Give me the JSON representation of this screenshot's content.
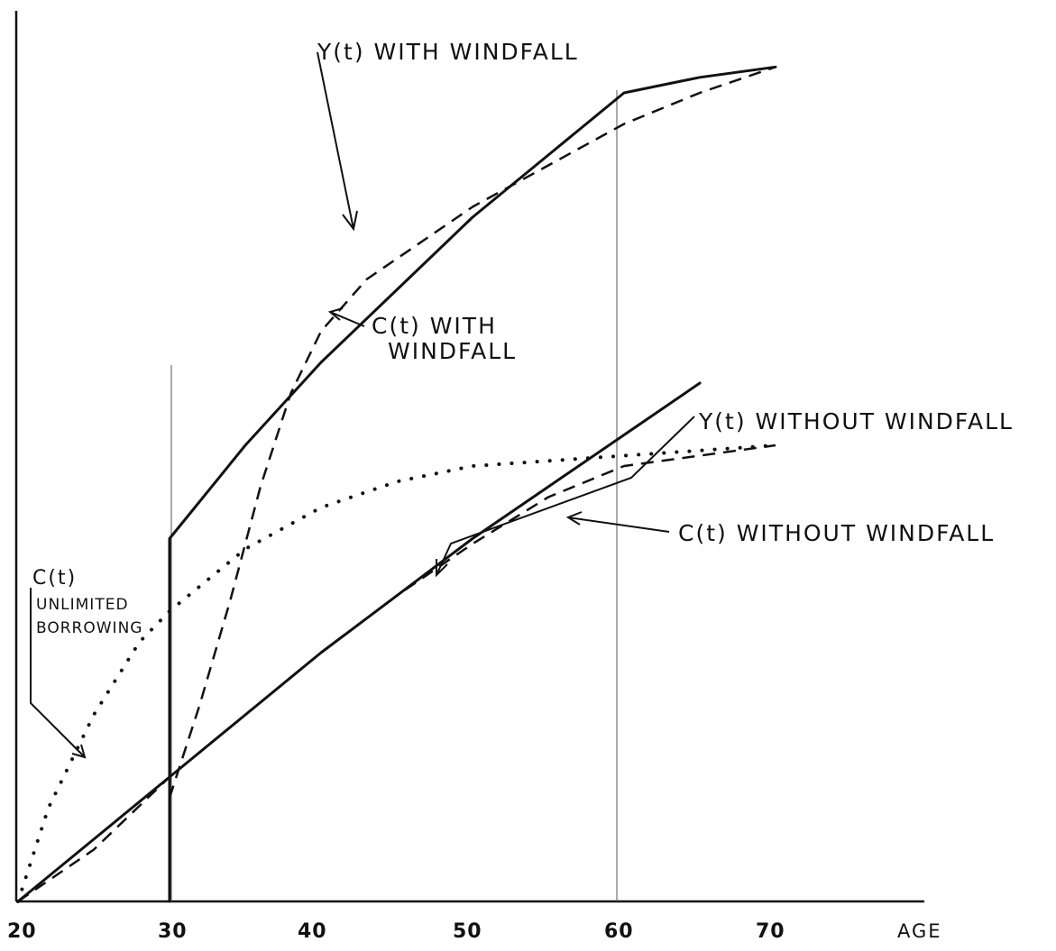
{
  "chart_data": {
    "type": "line",
    "title": "",
    "xlabel": "AGE",
    "ylabel": "",
    "x_ticks": [
      "20",
      "30",
      "40",
      "50",
      "60",
      "70"
    ],
    "xlim": [
      20,
      70
    ],
    "grid": false,
    "legend": "none",
    "series": [
      {
        "name": "Y(t) WITH WINDFALL",
        "style": "solid",
        "x": [
          30,
          30,
          35,
          40,
          45,
          50,
          55,
          60,
          65,
          70
        ],
        "y": [
          0,
          35,
          44,
          52,
          59,
          66,
          72,
          78,
          79.5,
          80.5
        ]
      },
      {
        "name": "C(t) WITH WINDFALL",
        "style": "dashed",
        "x": [
          30,
          32,
          34,
          36,
          38,
          40,
          43,
          47,
          50,
          55,
          60,
          65,
          70
        ],
        "y": [
          10,
          19,
          29,
          40,
          49,
          55,
          60,
          64,
          67,
          71,
          75,
          78,
          80.5
        ]
      },
      {
        "name": "Y(t) WITHOUT WINDFALL",
        "style": "solid",
        "x": [
          20,
          25,
          30,
          35,
          40,
          45,
          50,
          55,
          60,
          65
        ],
        "y": [
          0,
          6,
          12,
          18,
          24,
          29.5,
          35,
          40,
          45,
          50
        ]
      },
      {
        "name": "C(t) WITHOUT WINDFALL",
        "style": "dashed",
        "x": [
          20,
          25,
          30,
          35,
          40,
          45,
          50,
          55,
          60,
          65,
          70
        ],
        "y": [
          0,
          5,
          12,
          18,
          24,
          29.5,
          34.5,
          39,
          42,
          43,
          44
        ]
      },
      {
        "name": "C(t) UNLIMITED BORROWING",
        "style": "dotted",
        "x": [
          20,
          22,
          25,
          28,
          30,
          35,
          40,
          45,
          50,
          55,
          60,
          65,
          70
        ],
        "y": [
          0,
          9,
          18,
          25,
          28,
          34,
          38,
          40.5,
          42,
          42.5,
          43,
          43.5,
          44
        ]
      }
    ],
    "annotations": [
      {
        "key": "y_with",
        "text": "Y(t) WITH WINDFALL"
      },
      {
        "key": "c_with_1",
        "text": "C(t) WITH"
      },
      {
        "key": "c_with_2",
        "text": "WINDFALL"
      },
      {
        "key": "y_without",
        "text": "Y(t) WITHOUT WINDFALL"
      },
      {
        "key": "c_without",
        "text": "C(t) WITHOUT WINDFALL"
      },
      {
        "key": "c_unl_1",
        "text": "C(t)"
      },
      {
        "key": "c_unl_2",
        "text": "UNLIMITED"
      },
      {
        "key": "c_unl_3",
        "text": "BORROWING"
      }
    ],
    "line_color": "#111111"
  }
}
